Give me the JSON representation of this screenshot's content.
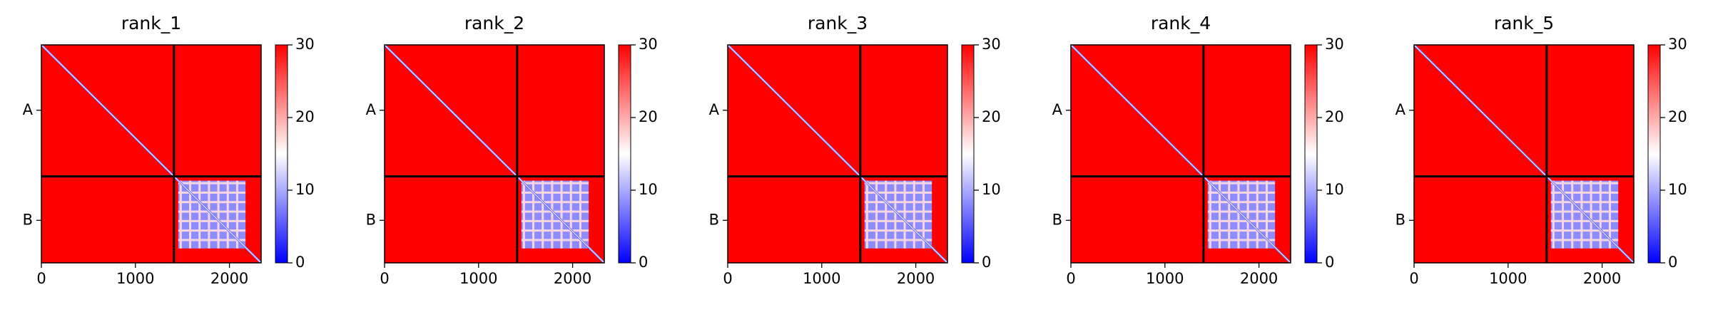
{
  "chart_data": [
    {
      "type": "heatmap",
      "title": "rank_1",
      "xlim": [
        0,
        2337
      ],
      "xticks": [
        0,
        1000,
        2000
      ],
      "ylim": [
        2337,
        0
      ],
      "yticks": [
        {
          "value": 701,
          "label": "A"
        },
        {
          "value": 1881,
          "label": "B"
        }
      ],
      "chain_breaks": [
        1410
      ],
      "clim": [
        0,
        30
      ],
      "cticks": [
        0,
        10,
        20,
        30
      ],
      "colors": [
        "#0000ff",
        "#ffffff",
        "#ff0000"
      ]
    },
    {
      "type": "heatmap",
      "title": "rank_2",
      "xlim": [
        0,
        2337
      ],
      "xticks": [
        0,
        1000,
        2000
      ],
      "ylim": [
        2337,
        0
      ],
      "yticks": [
        {
          "value": 701,
          "label": "A"
        },
        {
          "value": 1881,
          "label": "B"
        }
      ],
      "chain_breaks": [
        1410
      ],
      "clim": [
        0,
        30
      ],
      "cticks": [
        0,
        10,
        20,
        30
      ],
      "colors": [
        "#0000ff",
        "#ffffff",
        "#ff0000"
      ]
    },
    {
      "type": "heatmap",
      "title": "rank_3",
      "xlim": [
        0,
        2337
      ],
      "xticks": [
        0,
        1000,
        2000
      ],
      "ylim": [
        2337,
        0
      ],
      "yticks": [
        {
          "value": 701,
          "label": "A"
        },
        {
          "value": 1881,
          "label": "B"
        }
      ],
      "chain_breaks": [
        1410
      ],
      "clim": [
        0,
        30
      ],
      "cticks": [
        0,
        10,
        20,
        30
      ],
      "colors": [
        "#0000ff",
        "#ffffff",
        "#ff0000"
      ]
    },
    {
      "type": "heatmap",
      "title": "rank_4",
      "xlim": [
        0,
        2337
      ],
      "xticks": [
        0,
        1000,
        2000
      ],
      "ylim": [
        2337,
        0
      ],
      "yticks": [
        {
          "value": 701,
          "label": "A"
        },
        {
          "value": 1881,
          "label": "B"
        }
      ],
      "chain_breaks": [
        1410
      ],
      "clim": [
        0,
        30
      ],
      "cticks": [
        0,
        10,
        20,
        30
      ],
      "colors": [
        "#0000ff",
        "#ffffff",
        "#ff0000"
      ]
    },
    {
      "type": "heatmap",
      "title": "rank_5",
      "xlim": [
        0,
        2337
      ],
      "xticks": [
        0,
        1000,
        2000
      ],
      "ylim": [
        2337,
        0
      ],
      "yticks": [
        {
          "value": 701,
          "label": "A"
        },
        {
          "value": 1881,
          "label": "B"
        }
      ],
      "chain_breaks": [
        1410
      ],
      "clim": [
        0,
        30
      ],
      "cticks": [
        0,
        10,
        20,
        30
      ],
      "colors": [
        "#0000ff",
        "#ffffff",
        "#ff0000"
      ]
    }
  ]
}
